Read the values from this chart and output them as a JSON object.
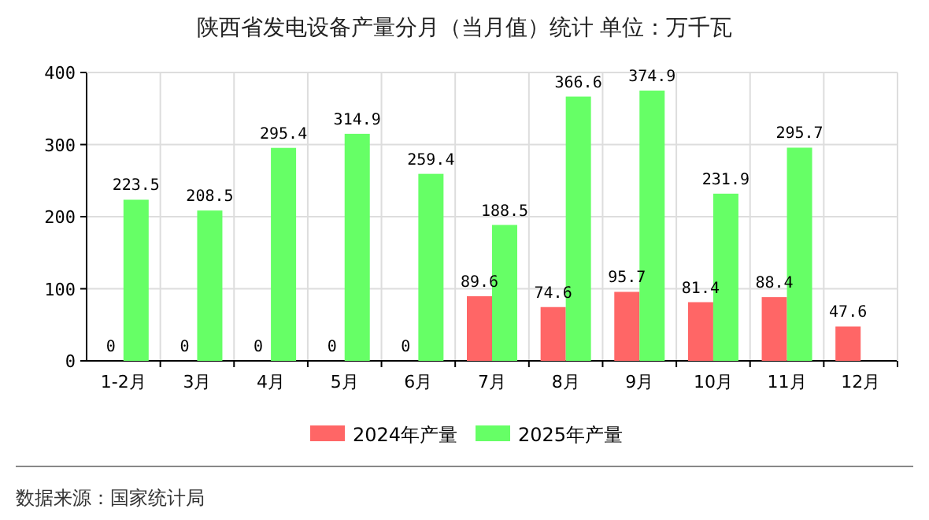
{
  "chart_data": {
    "type": "bar",
    "title": "陕西省发电设备产量分月（当月值）统计 单位：万千瓦",
    "categories": [
      "1-2月",
      "3月",
      "4月",
      "5月",
      "6月",
      "7月",
      "8月",
      "9月",
      "10月",
      "11月",
      "12月"
    ],
    "series": [
      {
        "name": "2024年产量",
        "color": "#ff6666",
        "values": [
          0,
          0,
          0,
          0,
          0,
          89.6,
          74.6,
          95.7,
          81.4,
          88.4,
          47.6
        ]
      },
      {
        "name": "2025年产量",
        "color": "#66ff66",
        "values": [
          223.5,
          208.5,
          295.4,
          314.9,
          259.4,
          188.5,
          366.6,
          374.9,
          231.9,
          295.7,
          null
        ]
      }
    ],
    "ylim": [
      0,
      400
    ],
    "yticks": [
      0,
      100,
      200,
      300,
      400
    ],
    "grid": true,
    "legend": "bottom",
    "data_labels": true,
    "annotations": [
      "数据来源：国家统计局"
    ]
  }
}
